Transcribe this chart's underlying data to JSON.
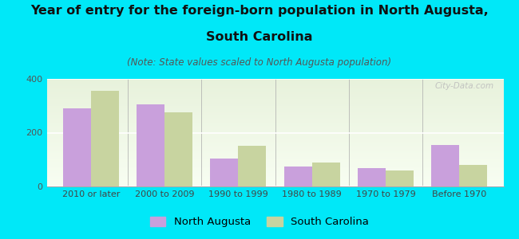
{
  "title_line1": "Year of entry for the foreign-born population in North Augusta,",
  "title_line2": "South Carolina",
  "subtitle": "(Note: State values scaled to North Augusta population)",
  "categories": [
    "2010 or later",
    "2000 to 2009",
    "1990 to 1999",
    "1980 to 1989",
    "1970 to 1979",
    "Before 1970"
  ],
  "north_augusta": [
    290,
    305,
    105,
    75,
    68,
    155
  ],
  "south_carolina": [
    355,
    275,
    150,
    90,
    60,
    80
  ],
  "north_augusta_color": "#c9a0dc",
  "south_carolina_color": "#c8d4a0",
  "background_color": "#00e8f8",
  "ylim": [
    0,
    400
  ],
  "yticks": [
    0,
    200,
    400
  ],
  "bar_width": 0.38,
  "title_fontsize": 11.5,
  "subtitle_fontsize": 8.5,
  "legend_fontsize": 9.5,
  "tick_fontsize": 8,
  "watermark": "City-Data.com"
}
